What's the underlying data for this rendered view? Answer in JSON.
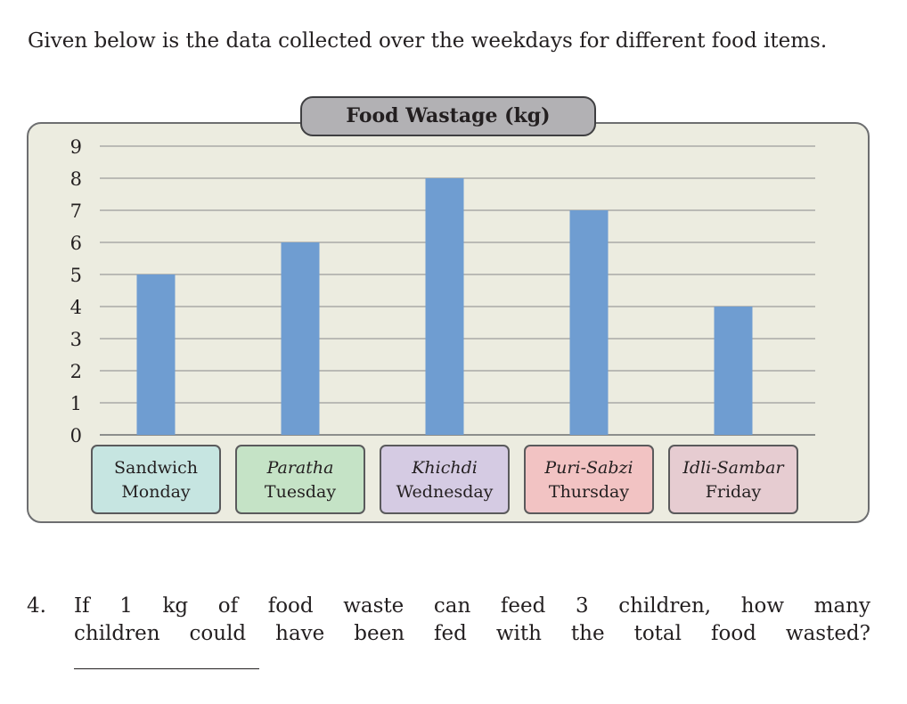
{
  "intro": "Given below is the data collected over the weekdays for different food items.",
  "chart_data": {
    "type": "bar",
    "title": "Food Wastage (kg)",
    "categories": [
      {
        "food": "Sandwich",
        "day": "Monday",
        "italic": false,
        "color": "#c6e5e1"
      },
      {
        "food": "Paratha",
        "day": "Tuesday",
        "italic": true,
        "color": "#c5e3c6"
      },
      {
        "food": "Khichdi",
        "day": "Wednesday",
        "italic": true,
        "color": "#d5cbe3"
      },
      {
        "food": "Puri-Sabzi",
        "day": "Thursday",
        "italic": true,
        "color": "#f2c3c3"
      },
      {
        "food": "Idli-Sambar",
        "day": "Friday",
        "italic": true,
        "color": "#e6ccd1"
      }
    ],
    "values": [
      5,
      6,
      8,
      7,
      4
    ],
    "yticks": [
      "0",
      "1",
      "2",
      "3",
      "4",
      "5",
      "6",
      "7",
      "8",
      "9"
    ],
    "ylim": [
      0,
      9
    ],
    "grid": true,
    "bar_color": "#6f9dd1"
  },
  "question": {
    "number": "4.",
    "line1": "If 1 kg of food waste can feed 3 children, how many",
    "line2": "children could have been fed with the total food wasted?"
  }
}
